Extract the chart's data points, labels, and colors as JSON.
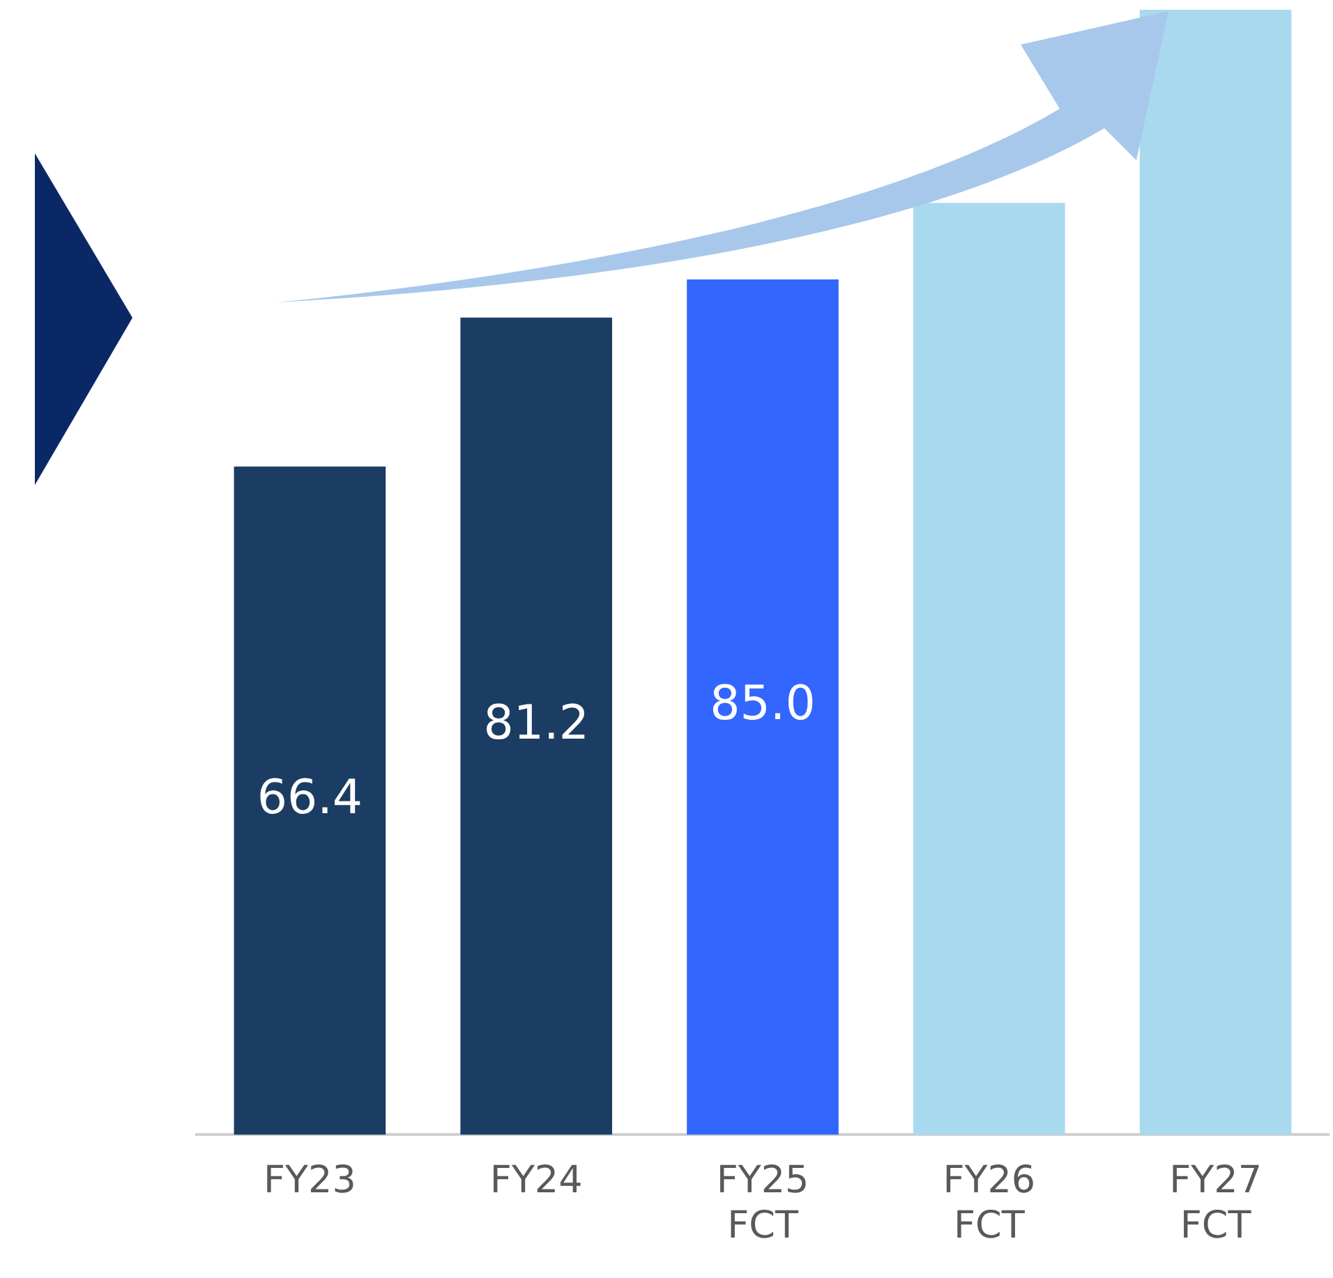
{
  "chart_data": {
    "type": "bar",
    "categories": [
      "FY23",
      "FY24",
      "FY25\nFCT",
      "FY26\nFCT",
      "FY27\nFCT"
    ],
    "values": [
      66.4,
      81.2,
      85.0,
      92.6,
      111.8
    ],
    "colors": [
      "#1b3d63",
      "#1b3d63",
      "#3366ff",
      "#a9d9ef",
      "#a9d9ef"
    ],
    "value_labels": [
      "66.4",
      "81.2",
      "85.0",
      null,
      null
    ],
    "grid": false,
    "legend": false
  }
}
